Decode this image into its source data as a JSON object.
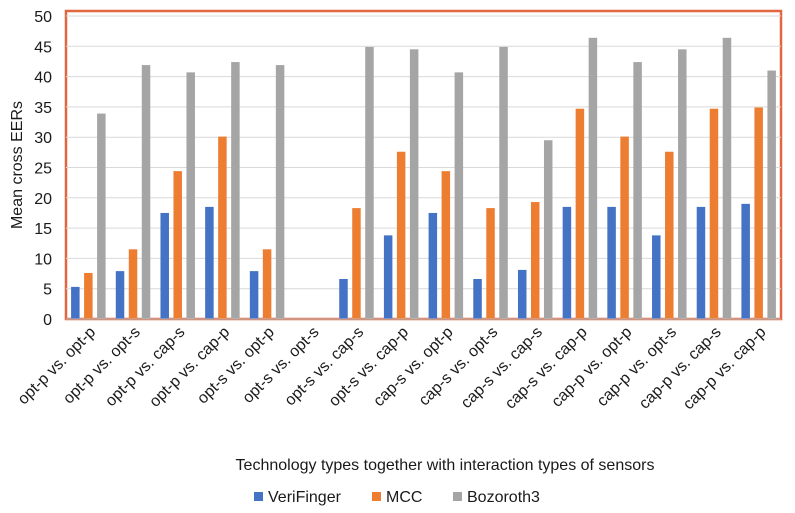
{
  "chart_data": {
    "type": "bar",
    "title": "",
    "xlabel": "Technology types together with interaction types of sensors",
    "ylabel": "Mean cross EERs",
    "ylim": [
      0,
      50
    ],
    "yticks": [
      0,
      5,
      10,
      15,
      20,
      25,
      30,
      35,
      40,
      45,
      50
    ],
    "grid": "horizontal",
    "legend_position": "bottom",
    "categories": [
      "opt-p vs. opt-p",
      "opt-p vs. opt-s",
      "opt-p vs. cap-s",
      "opt-p vs. cap-p",
      "opt-s vs. opt-p",
      "opt-s vs. opt-s",
      "opt-s vs. cap-s",
      "opt-s vs. cap-p",
      "cap-s vs. opt-p",
      "cap-s vs. opt-s",
      "cap-s vs. cap-s",
      "cap-s vs. cap-p",
      "cap-p vs. opt-p",
      "cap-p vs. opt-s",
      "cap-p vs. cap-s",
      "cap-p vs. cap-p"
    ],
    "series": [
      {
        "name": "VeriFinger",
        "color": "#4472C4",
        "values": [
          5.3,
          7.9,
          17.5,
          18.5,
          7.9,
          0,
          6.6,
          13.8,
          17.5,
          6.6,
          8.1,
          18.5,
          18.5,
          13.8,
          18.5,
          19.0
        ]
      },
      {
        "name": "MCC",
        "color": "#ED7D31",
        "values": [
          7.6,
          11.5,
          24.4,
          30.1,
          11.5,
          0,
          18.3,
          27.6,
          24.4,
          18.3,
          19.3,
          34.7,
          30.1,
          27.6,
          34.7,
          34.9
        ]
      },
      {
        "name": "Bozoroth3",
        "color": "#A5A5A5",
        "values": [
          33.9,
          41.9,
          40.7,
          42.4,
          41.9,
          0,
          44.9,
          44.5,
          40.7,
          44.9,
          29.5,
          46.4,
          42.4,
          44.5,
          46.4,
          41.0
        ]
      }
    ],
    "frame_color": "#E0673F",
    "grid_color": "#D9D9D9"
  }
}
